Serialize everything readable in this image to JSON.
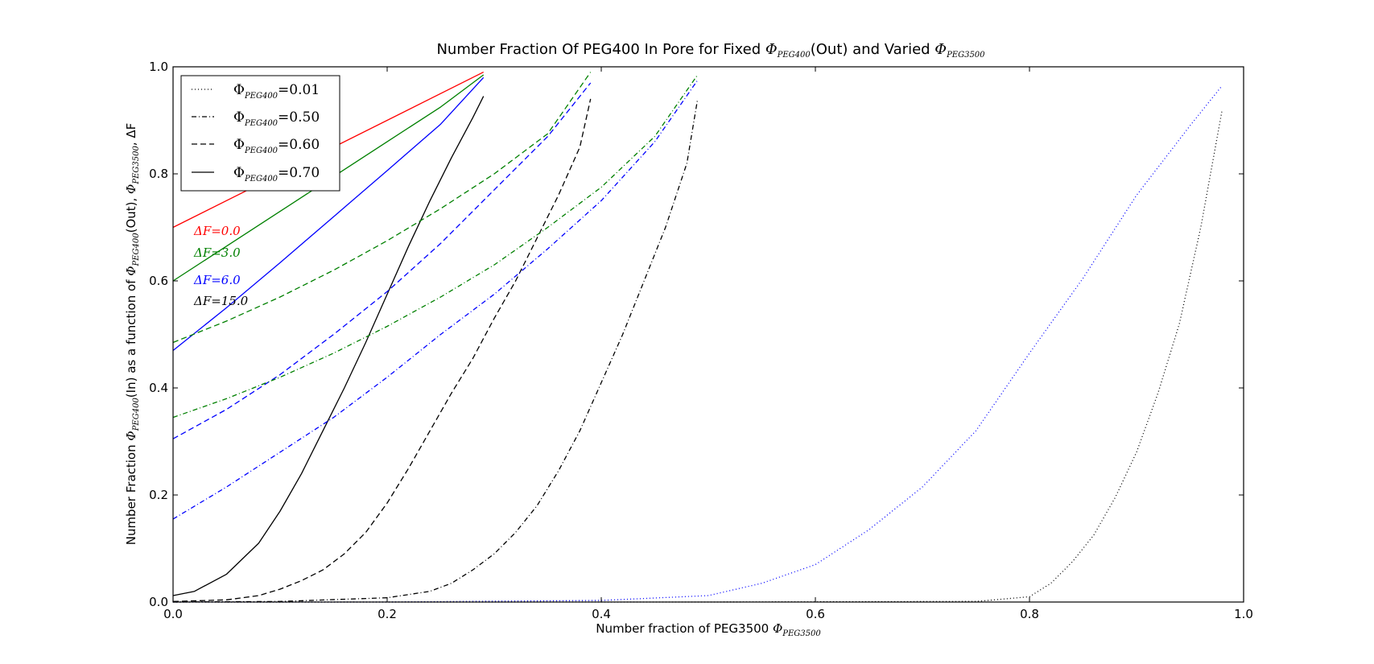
{
  "chart_data": {
    "type": "line",
    "title_parts": [
      "Number Fraction Of PEG400 In Pore for Fixed ",
      "Φ",
      "PEG400",
      "(Out) and Varied ",
      "Φ",
      "PEG3500"
    ],
    "xlabel_parts": [
      "Number fraction of PEG3500 ",
      "Φ",
      "PEG3500"
    ],
    "ylabel_parts": [
      "Number Fraction ",
      "Φ",
      "PEG400",
      "(In) as a function of ",
      "Φ",
      "PEG400",
      "(Out), ",
      "Φ",
      "PEG3500",
      ", ΔF"
    ],
    "xlim": [
      0.0,
      1.0
    ],
    "ylim": [
      0.0,
      1.0
    ],
    "xticks": [
      0.0,
      0.2,
      0.4,
      0.6,
      0.8,
      1.0
    ],
    "yticks": [
      0.0,
      0.2,
      0.4,
      0.6,
      0.8,
      1.0
    ],
    "xtick_labels": [
      "0.0",
      "0.2",
      "0.4",
      "0.6",
      "0.8",
      "1.0"
    ],
    "ytick_labels": [
      "0.0",
      "0.2",
      "0.4",
      "0.6",
      "0.8",
      "1.0"
    ],
    "grid": false,
    "legend": {
      "placement": "top-left",
      "entries": [
        {
          "symbol": "Φ",
          "sub": "PEG400",
          "value": "=0.01",
          "style": "dotted"
        },
        {
          "symbol": "Φ",
          "sub": "PEG400",
          "value": "=0.50",
          "style": "dashdot"
        },
        {
          "symbol": "Φ",
          "sub": "PEG400",
          "value": "=0.60",
          "style": "dashed"
        },
        {
          "symbol": "Φ",
          "sub": "PEG400",
          "value": "=0.70",
          "style": "solid"
        }
      ]
    },
    "annotations": [
      {
        "text": "ΔF=0.0",
        "color": "#ff0000"
      },
      {
        "text": "ΔF=3.0",
        "color": "#008000"
      },
      {
        "text": "ΔF=6.0",
        "color": "#0000ff"
      },
      {
        "text": "ΔF=15.0",
        "color": "#000000"
      }
    ],
    "series": [
      {
        "color": "#ff0000",
        "style": "solid",
        "x": [
          0.0,
          0.29
        ],
        "y": [
          0.7,
          0.99
        ]
      },
      {
        "color": "#008000",
        "style": "solid",
        "x": [
          0.0,
          0.05,
          0.1,
          0.15,
          0.2,
          0.25,
          0.29
        ],
        "y": [
          0.6,
          0.665,
          0.73,
          0.795,
          0.86,
          0.925,
          0.985
        ]
      },
      {
        "color": "#0000ff",
        "style": "solid",
        "x": [
          0.0,
          0.05,
          0.1,
          0.15,
          0.2,
          0.25,
          0.29
        ],
        "y": [
          0.47,
          0.55,
          0.634,
          0.72,
          0.806,
          0.893,
          0.98
        ]
      },
      {
        "color": "#000000",
        "style": "solid",
        "x": [
          0.0,
          0.02,
          0.05,
          0.08,
          0.1,
          0.12,
          0.14,
          0.16,
          0.18,
          0.2,
          0.22,
          0.24,
          0.26,
          0.28,
          0.29
        ],
        "y": [
          0.012,
          0.02,
          0.052,
          0.11,
          0.17,
          0.24,
          0.32,
          0.4,
          0.485,
          0.575,
          0.665,
          0.75,
          0.83,
          0.905,
          0.945
        ]
      },
      {
        "color": "#008000",
        "style": "dashed",
        "x": [
          0.0,
          0.05,
          0.1,
          0.15,
          0.2,
          0.25,
          0.3,
          0.35,
          0.39
        ],
        "y": [
          0.485,
          0.525,
          0.57,
          0.62,
          0.675,
          0.735,
          0.8,
          0.875,
          0.99
        ]
      },
      {
        "color": "#0000ff",
        "style": "dashed",
        "x": [
          0.0,
          0.05,
          0.1,
          0.15,
          0.2,
          0.25,
          0.3,
          0.35,
          0.39
        ],
        "y": [
          0.305,
          0.36,
          0.425,
          0.5,
          0.58,
          0.67,
          0.77,
          0.87,
          0.97
        ]
      },
      {
        "color": "#000000",
        "style": "dashed",
        "x": [
          0.0,
          0.05,
          0.08,
          0.1,
          0.12,
          0.14,
          0.16,
          0.18,
          0.2,
          0.22,
          0.24,
          0.26,
          0.28,
          0.3,
          0.32,
          0.34,
          0.36,
          0.38,
          0.39
        ],
        "y": [
          0.001,
          0.004,
          0.012,
          0.024,
          0.04,
          0.06,
          0.09,
          0.13,
          0.185,
          0.25,
          0.32,
          0.39,
          0.455,
          0.53,
          0.6,
          0.68,
          0.76,
          0.85,
          0.94
        ]
      },
      {
        "color": "#008000",
        "style": "dashdot",
        "x": [
          0.0,
          0.05,
          0.1,
          0.15,
          0.2,
          0.25,
          0.3,
          0.35,
          0.4,
          0.45,
          0.49
        ],
        "y": [
          0.345,
          0.38,
          0.42,
          0.465,
          0.515,
          0.57,
          0.63,
          0.7,
          0.775,
          0.87,
          0.985
        ]
      },
      {
        "color": "#0000ff",
        "style": "dashdot",
        "x": [
          0.0,
          0.05,
          0.1,
          0.15,
          0.2,
          0.25,
          0.3,
          0.35,
          0.4,
          0.45,
          0.49
        ],
        "y": [
          0.155,
          0.215,
          0.28,
          0.345,
          0.42,
          0.5,
          0.575,
          0.66,
          0.75,
          0.86,
          0.975
        ]
      },
      {
        "color": "#000000",
        "style": "dashdot",
        "x": [
          0.0,
          0.1,
          0.2,
          0.24,
          0.26,
          0.28,
          0.3,
          0.32,
          0.34,
          0.36,
          0.38,
          0.4,
          0.42,
          0.44,
          0.46,
          0.48,
          0.49
        ],
        "y": [
          0.0,
          0.001,
          0.008,
          0.02,
          0.035,
          0.06,
          0.09,
          0.13,
          0.18,
          0.245,
          0.32,
          0.41,
          0.5,
          0.6,
          0.7,
          0.82,
          0.94
        ]
      },
      {
        "color": "#0000ff",
        "style": "dotted",
        "x": [
          0.0,
          0.2,
          0.4,
          0.5,
          0.55,
          0.6,
          0.65,
          0.7,
          0.75,
          0.8,
          0.85,
          0.9,
          0.95,
          0.98
        ],
        "y": [
          0.0,
          0.0,
          0.003,
          0.012,
          0.035,
          0.07,
          0.135,
          0.215,
          0.32,
          0.465,
          0.605,
          0.76,
          0.89,
          0.965
        ]
      },
      {
        "color": "#000000",
        "style": "dotted",
        "x": [
          0.0,
          0.5,
          0.75,
          0.8,
          0.82,
          0.84,
          0.86,
          0.88,
          0.9,
          0.92,
          0.94,
          0.96,
          0.98
        ],
        "y": [
          0.0,
          0.0,
          0.001,
          0.01,
          0.035,
          0.075,
          0.125,
          0.195,
          0.28,
          0.39,
          0.52,
          0.7,
          0.92
        ]
      }
    ]
  }
}
